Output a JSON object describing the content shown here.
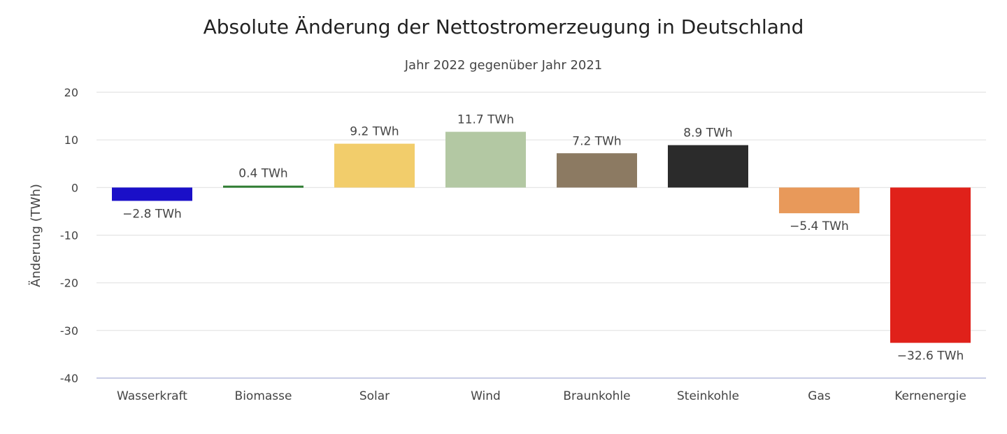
{
  "chart_data": {
    "type": "bar",
    "title": "Absolute Änderung der Nettostromerzeugung in Deutschland",
    "subtitle": "Jahr 2022 gegenüber Jahr 2021",
    "xlabel": "",
    "ylabel": "Änderung (TWh)",
    "ylim": [
      -40,
      20
    ],
    "yticks": [
      20,
      10,
      0,
      -10,
      -20,
      -30,
      -40
    ],
    "grid": true,
    "legend": "none",
    "categories": [
      "Wasserkraft",
      "Biomasse",
      "Solar",
      "Wind",
      "Braunkohle",
      "Steinkohle",
      "Gas",
      "Kernenergie"
    ],
    "values": [
      -2.8,
      0.4,
      9.2,
      11.7,
      7.2,
      8.9,
      -5.4,
      -32.6
    ],
    "data_labels": [
      "−2.8 TWh",
      "0.4 TWh",
      "9.2 TWh",
      "11.7 TWh",
      "7.2 TWh",
      "8.9 TWh",
      "−5.4 TWh",
      "−32.6 TWh"
    ],
    "colors": [
      "#1a0fc8",
      "#2f7d32",
      "#f2cd6b",
      "#b3c8a3",
      "#8c7a62",
      "#2b2b2b",
      "#e8995a",
      "#e0211a"
    ]
  }
}
